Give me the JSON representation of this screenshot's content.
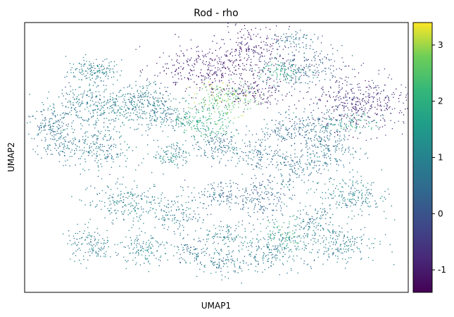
{
  "chart_data": {
    "type": "scatter",
    "title": "Rod - rho",
    "xlabel": "UMAP1",
    "ylabel": "UMAP2",
    "show_axis_ticks": false,
    "grid": false,
    "colormap": "viridis",
    "colorbar": {
      "placement": "right",
      "range": [
        -1.4,
        3.4
      ],
      "ticks": [
        -1,
        0,
        1,
        2,
        3
      ],
      "tick_labels": [
        "-1",
        "0",
        "1",
        "2",
        "3"
      ]
    },
    "point_size": "tiny",
    "clusters": [
      {
        "x": 0.18,
        "y": 0.82,
        "sx": 0.035,
        "sy": 0.025,
        "n": 160,
        "value": 0.9
      },
      {
        "x": 0.14,
        "y": 0.7,
        "sx": 0.045,
        "sy": 0.035,
        "n": 180,
        "value": 0.8
      },
      {
        "x": 0.06,
        "y": 0.62,
        "sx": 0.03,
        "sy": 0.03,
        "n": 120,
        "value": 0.6
      },
      {
        "x": 0.24,
        "y": 0.69,
        "sx": 0.04,
        "sy": 0.035,
        "n": 190,
        "value": 0.9
      },
      {
        "x": 0.2,
        "y": 0.53,
        "sx": 0.04,
        "sy": 0.045,
        "n": 200,
        "value": 0.8
      },
      {
        "x": 0.1,
        "y": 0.55,
        "sx": 0.03,
        "sy": 0.03,
        "n": 110,
        "value": 0.7
      },
      {
        "x": 0.32,
        "y": 0.72,
        "sx": 0.035,
        "sy": 0.03,
        "n": 140,
        "value": 0.7
      },
      {
        "x": 0.36,
        "y": 0.66,
        "sx": 0.04,
        "sy": 0.035,
        "n": 160,
        "value": 0.8
      },
      {
        "x": 0.38,
        "y": 0.51,
        "sx": 0.025,
        "sy": 0.025,
        "n": 100,
        "value": 1.0
      },
      {
        "x": 0.27,
        "y": 0.33,
        "sx": 0.05,
        "sy": 0.035,
        "n": 220,
        "value": 0.9
      },
      {
        "x": 0.4,
        "y": 0.29,
        "sx": 0.03,
        "sy": 0.035,
        "n": 110,
        "value": 0.8
      },
      {
        "x": 0.17,
        "y": 0.18,
        "sx": 0.03,
        "sy": 0.03,
        "n": 130,
        "value": 0.8
      },
      {
        "x": 0.31,
        "y": 0.16,
        "sx": 0.035,
        "sy": 0.03,
        "n": 130,
        "value": 1.0
      },
      {
        "x": 0.44,
        "y": 0.15,
        "sx": 0.025,
        "sy": 0.025,
        "n": 90,
        "value": 0.6
      },
      {
        "x": 0.52,
        "y": 0.12,
        "sx": 0.03,
        "sy": 0.03,
        "n": 110,
        "value": 0.7
      },
      {
        "x": 0.52,
        "y": 0.22,
        "sx": 0.025,
        "sy": 0.025,
        "n": 80,
        "value": 0.9
      },
      {
        "x": 0.49,
        "y": 0.36,
        "sx": 0.035,
        "sy": 0.025,
        "n": 110,
        "value": 0.5
      },
      {
        "x": 0.62,
        "y": 0.36,
        "sx": 0.04,
        "sy": 0.04,
        "n": 200,
        "value": 0.4
      },
      {
        "x": 0.64,
        "y": 0.16,
        "sx": 0.045,
        "sy": 0.04,
        "n": 200,
        "value": 0.8
      },
      {
        "x": 0.74,
        "y": 0.26,
        "sx": 0.03,
        "sy": 0.03,
        "n": 110,
        "value": 0.7
      },
      {
        "x": 0.82,
        "y": 0.18,
        "sx": 0.05,
        "sy": 0.035,
        "n": 200,
        "value": 0.9
      },
      {
        "x": 0.85,
        "y": 0.36,
        "sx": 0.05,
        "sy": 0.035,
        "n": 200,
        "value": 0.9
      },
      {
        "x": 0.7,
        "y": 0.47,
        "sx": 0.03,
        "sy": 0.035,
        "n": 120,
        "value": 0.6
      },
      {
        "x": 0.79,
        "y": 0.52,
        "sx": 0.04,
        "sy": 0.035,
        "n": 150,
        "value": 0.7
      },
      {
        "x": 0.6,
        "y": 0.51,
        "sx": 0.03,
        "sy": 0.03,
        "n": 100,
        "value": 0.6
      },
      {
        "x": 0.5,
        "y": 0.55,
        "sx": 0.04,
        "sy": 0.03,
        "n": 150,
        "value": 0.6
      },
      {
        "x": 0.67,
        "y": 0.6,
        "sx": 0.04,
        "sy": 0.03,
        "n": 130,
        "value": 0.5
      },
      {
        "x": 0.77,
        "y": 0.6,
        "sx": 0.04,
        "sy": 0.035,
        "n": 150,
        "value": 0.6
      },
      {
        "x": 0.52,
        "y": 0.72,
        "sx": 0.045,
        "sy": 0.03,
        "n": 200,
        "value": 2.6
      },
      {
        "x": 0.46,
        "y": 0.63,
        "sx": 0.04,
        "sy": 0.03,
        "n": 180,
        "value": 2.0
      },
      {
        "x": 0.47,
        "y": 0.83,
        "sx": 0.07,
        "sy": 0.045,
        "n": 300,
        "value": -0.9
      },
      {
        "x": 0.59,
        "y": 0.9,
        "sx": 0.04,
        "sy": 0.05,
        "n": 200,
        "value": -0.9
      },
      {
        "x": 0.59,
        "y": 0.74,
        "sx": 0.06,
        "sy": 0.03,
        "n": 150,
        "value": -0.8
      },
      {
        "x": 0.73,
        "y": 0.84,
        "sx": 0.05,
        "sy": 0.045,
        "n": 220,
        "value": 0.2
      },
      {
        "x": 0.67,
        "y": 0.82,
        "sx": 0.03,
        "sy": 0.02,
        "n": 100,
        "value": 1.8
      },
      {
        "x": 0.87,
        "y": 0.7,
        "sx": 0.065,
        "sy": 0.055,
        "n": 420,
        "value": -0.7
      },
      {
        "x": 0.7,
        "y": 0.94,
        "sx": 0.025,
        "sy": 0.015,
        "n": 60,
        "value": 0.6
      },
      {
        "x": 0.68,
        "y": 0.22,
        "sx": 0.03,
        "sy": 0.03,
        "n": 80,
        "value": 2.0
      },
      {
        "x": 0.86,
        "y": 0.63,
        "sx": 0.03,
        "sy": 0.02,
        "n": 70,
        "value": 1.7
      }
    ]
  }
}
